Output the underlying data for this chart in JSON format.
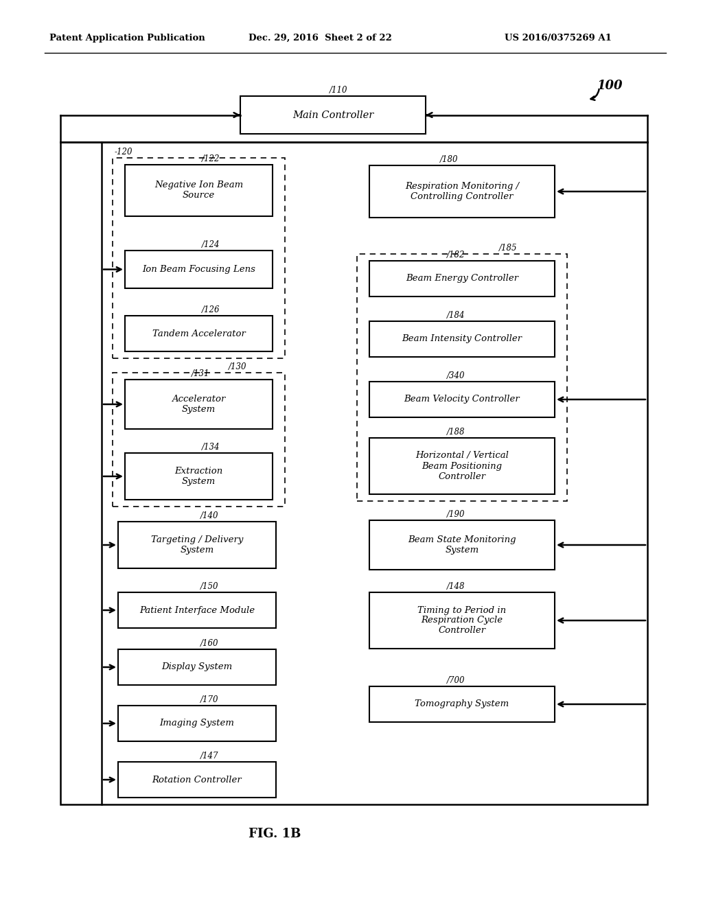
{
  "header_left": "Patent Application Publication",
  "header_mid": "Dec. 29, 2016  Sheet 2 of 22",
  "header_right": "US 2016/0375269 A1",
  "fig_label": "FIG. 1B",
  "bg_color": "#ffffff"
}
